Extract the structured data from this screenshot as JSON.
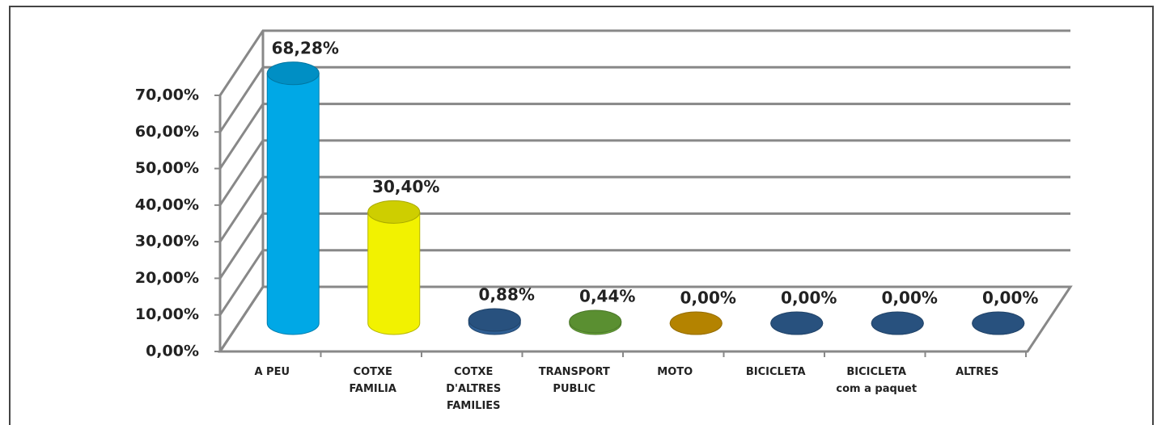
{
  "chart_data": {
    "type": "bar3d",
    "categories": [
      "A PEU",
      "COTXE\nFAMILIA",
      "COTXE\nD'ALTRES\nFAMILIES",
      "TRANSPORT\nPUBLIC",
      "MOTO",
      "BICICLETA",
      "BICICLETA\ncom a paquet",
      "ALTRES"
    ],
    "values": [
      68.28,
      30.4,
      0.88,
      0.44,
      0,
      0,
      0,
      0
    ],
    "value_labels": [
      "68,28%",
      "30,40%",
      "0,88%",
      "0,44%",
      "0,00%",
      "0,00%",
      "0,00%",
      "0,00%"
    ],
    "colors": [
      "#00a8e6",
      "#f2f200",
      "#2f5f94",
      "#6aa83a",
      "#d49a00",
      "#2f5f94",
      "#2f5f94",
      "#2f5f94"
    ],
    "ylim": [
      0,
      70
    ],
    "yticks": [
      {
        "value": 0,
        "label": "0,00%"
      },
      {
        "value": 10,
        "label": "10,00%"
      },
      {
        "value": 20,
        "label": "20,00%"
      },
      {
        "value": 30,
        "label": "30,00%"
      },
      {
        "value": 40,
        "label": "40,00%"
      },
      {
        "value": 50,
        "label": "50,00%"
      },
      {
        "value": 60,
        "label": "60,00%"
      },
      {
        "value": 70,
        "label": "70,00%"
      }
    ],
    "grid": true
  }
}
